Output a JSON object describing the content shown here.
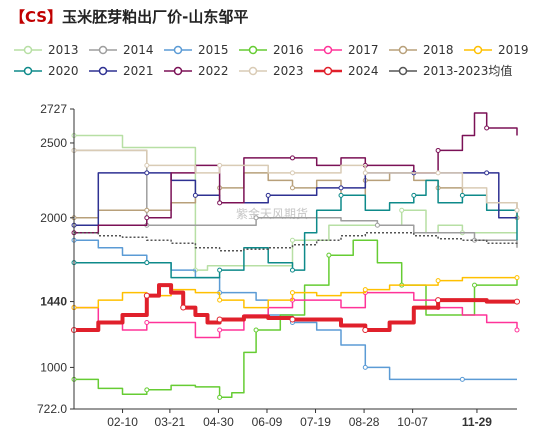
{
  "title": {
    "bracket": "【CS】",
    "text": "玉米胚芽粕出厂价-山东邹平"
  },
  "colors": {
    "2013": "#b7dfa4",
    "2014": "#9e9e9e",
    "2015": "#5b9bd5",
    "2016": "#66cc33",
    "2017": "#ff3399",
    "2018": "#b8a07a",
    "2019": "#ffc000",
    "2020": "#0e8a8a",
    "2021": "#2e3192",
    "2022": "#7b1156",
    "2023": "#d9cbb5",
    "2024": "#e0202b",
    "2013-2023均值": "#555555"
  },
  "chart_data": {
    "type": "line",
    "ylim": [
      722,
      2727
    ],
    "yticks": [
      722,
      1000,
      1440,
      2000,
      2500,
      2727
    ],
    "ytick_labels": [
      "722.0",
      "1000",
      "1440",
      "2000",
      "2500",
      "2727"
    ],
    "highlight_ytick": "1440",
    "xlim": [
      0,
      365
    ],
    "xticks": [
      {
        "label": "02-10",
        "day": 40
      },
      {
        "label": "03-21",
        "day": 79
      },
      {
        "label": "04-30",
        "day": 119
      },
      {
        "label": "06-09",
        "day": 159
      },
      {
        "label": "07-19",
        "day": 199
      },
      {
        "label": "08-28",
        "day": 239
      },
      {
        "label": "10-07",
        "day": 279
      },
      {
        "label": "11-29",
        "day": 332
      }
    ],
    "highlight_xtick": "11-29",
    "series": [
      {
        "name": "2013",
        "x": [
          0,
          40,
          70,
          100,
          110,
          150,
          180,
          210,
          250,
          270,
          290,
          300,
          320,
          350,
          365
        ],
        "y": [
          2550,
          2470,
          2470,
          1650,
          1680,
          1680,
          1850,
          1950,
          1950,
          2050,
          1900,
          1950,
          1900,
          1900,
          1900
        ]
      },
      {
        "name": "2014",
        "x": [
          0,
          10,
          50,
          60,
          100,
          120,
          150,
          180,
          220,
          250,
          280,
          300,
          330,
          365
        ],
        "y": [
          2450,
          2450,
          2450,
          1950,
          1950,
          1950,
          2000,
          2000,
          1980,
          1950,
          1900,
          1900,
          1850,
          1800
        ]
      },
      {
        "name": "2015",
        "x": [
          0,
          20,
          40,
          60,
          80,
          100,
          120,
          150,
          160,
          180,
          200,
          220,
          240,
          260,
          280,
          320,
          340,
          365
        ],
        "y": [
          1850,
          1800,
          1750,
          1700,
          1650,
          1600,
          1500,
          1450,
          1350,
          1300,
          1250,
          1150,
          1000,
          920,
          920,
          920,
          920,
          920
        ]
      },
      {
        "name": "2016",
        "x": [
          0,
          20,
          40,
          60,
          80,
          100,
          120,
          130,
          140,
          150,
          170,
          190,
          210,
          230,
          250,
          270,
          290,
          310,
          330,
          350,
          365
        ],
        "y": [
          920,
          860,
          820,
          850,
          880,
          870,
          800,
          830,
          1100,
          1250,
          1350,
          1550,
          1750,
          1850,
          1700,
          1550,
          1350,
          1350,
          1550,
          1550,
          1600
        ]
      },
      {
        "name": "2017",
        "x": [
          0,
          20,
          40,
          60,
          80,
          100,
          120,
          140,
          160,
          180,
          200,
          220,
          240,
          260,
          280,
          300,
          320,
          340,
          365
        ],
        "y": [
          1400,
          1300,
          1250,
          1300,
          1300,
          1200,
          1250,
          1350,
          1400,
          1450,
          1450,
          1400,
          1500,
          1500,
          1450,
          1400,
          1350,
          1300,
          1250
        ]
      },
      {
        "name": "2018",
        "x": [
          0,
          20,
          40,
          60,
          80,
          100,
          120,
          140,
          160,
          180,
          200,
          220,
          240,
          260,
          280,
          300,
          320,
          340,
          365
        ],
        "y": [
          2000,
          2050,
          2050,
          2050,
          2100,
          2150,
          2200,
          2300,
          2250,
          2200,
          2250,
          2150,
          2250,
          2300,
          2250,
          2200,
          2150,
          2100,
          2000
        ]
      },
      {
        "name": "2019",
        "x": [
          0,
          20,
          40,
          60,
          80,
          100,
          120,
          140,
          160,
          180,
          200,
          220,
          240,
          260,
          280,
          300,
          320,
          340,
          365
        ],
        "y": [
          1400,
          1450,
          1500,
          1480,
          1520,
          1500,
          1450,
          1400,
          1450,
          1500,
          1480,
          1500,
          1520,
          1550,
          1550,
          1580,
          1600,
          1600,
          1600
        ]
      },
      {
        "name": "2020",
        "x": [
          0,
          20,
          40,
          60,
          80,
          100,
          120,
          140,
          160,
          180,
          190,
          200,
          220,
          240,
          260,
          280,
          290,
          300,
          320,
          340,
          365
        ],
        "y": [
          1700,
          1700,
          1700,
          1700,
          1600,
          1600,
          1650,
          1800,
          1700,
          1650,
          1900,
          2050,
          2150,
          2050,
          2100,
          2150,
          2250,
          2100,
          2150,
          2050,
          1850
        ]
      },
      {
        "name": "2021",
        "x": [
          0,
          20,
          40,
          60,
          70,
          80,
          100,
          120,
          140,
          160,
          180,
          200,
          220,
          240,
          260,
          280,
          300,
          320,
          340,
          350,
          365
        ],
        "y": [
          1950,
          2300,
          2300,
          2300,
          2300,
          2250,
          2150,
          2100,
          2100,
          2150,
          2150,
          2200,
          2200,
          2300,
          2300,
          2300,
          2300,
          2300,
          2300,
          2000,
          2000
        ]
      },
      {
        "name": "2022",
        "x": [
          0,
          20,
          40,
          60,
          80,
          100,
          120,
          140,
          160,
          180,
          200,
          220,
          240,
          260,
          280,
          300,
          320,
          330,
          340,
          365
        ],
        "y": [
          1900,
          1950,
          1950,
          2000,
          2300,
          2350,
          2100,
          2400,
          2400,
          2400,
          2350,
          2400,
          2350,
          2350,
          2300,
          2450,
          2550,
          2700,
          2600,
          2550
        ]
      },
      {
        "name": "2023",
        "x": [
          0,
          20,
          40,
          60,
          80,
          100,
          120,
          140,
          160,
          180,
          200,
          220,
          240,
          260,
          280,
          300,
          320,
          340,
          365
        ],
        "y": [
          2450,
          2450,
          2450,
          2350,
          2350,
          2300,
          2350,
          2350,
          2300,
          2300,
          2300,
          2350,
          2300,
          2300,
          2300,
          2300,
          2200,
          2100,
          2050
        ]
      },
      {
        "name": "2024",
        "x": [
          0,
          20,
          40,
          60,
          70,
          80,
          90,
          100,
          110,
          120,
          140,
          160,
          180,
          200,
          220,
          240,
          260,
          280,
          300,
          320,
          340,
          365
        ],
        "y": [
          1250,
          1300,
          1350,
          1480,
          1550,
          1500,
          1400,
          1350,
          1300,
          1320,
          1340,
          1330,
          1320,
          1320,
          1280,
          1250,
          1300,
          1400,
          1450,
          1450,
          1440,
          1440
        ]
      },
      {
        "name": "2013-2023均值",
        "x": [
          0,
          20,
          40,
          60,
          80,
          100,
          120,
          140,
          160,
          180,
          200,
          220,
          240,
          260,
          280,
          300,
          320,
          340,
          365
        ],
        "y": [
          1900,
          1880,
          1870,
          1850,
          1830,
          1800,
          1780,
          1790,
          1800,
          1820,
          1850,
          1880,
          1900,
          1900,
          1880,
          1860,
          1850,
          1830,
          1820
        ]
      }
    ],
    "legend": {
      "position": "top",
      "columns": 7
    },
    "watermark": "紫金天风期货"
  }
}
